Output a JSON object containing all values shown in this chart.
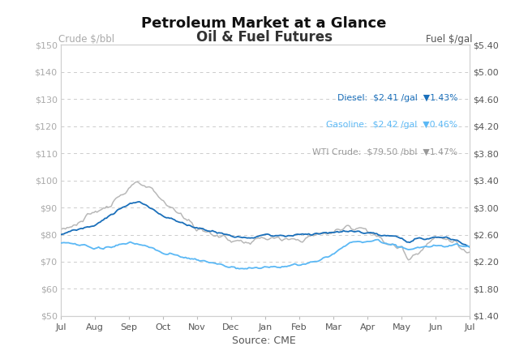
{
  "title": "Petroleum Market at a Glance",
  "subtitle": "Oil & Fuel Futures",
  "source": "Source: CME",
  "left_ylabel": "Crude $/bbl",
  "right_ylabel": "Fuel $/gal",
  "xlabels": [
    "Jul",
    "Aug",
    "Sep",
    "Oct",
    "Nov",
    "Dec",
    "Jan",
    "Feb",
    "Mar",
    "Apr",
    "May",
    "Jun",
    "Jul"
  ],
  "left_ylim": [
    50,
    150
  ],
  "right_ylim": [
    1.4,
    5.4
  ],
  "left_yticks": [
    50,
    60,
    70,
    80,
    90,
    100,
    110,
    120,
    130,
    140,
    150
  ],
  "right_yticks": [
    1.4,
    1.8,
    2.2,
    2.6,
    3.0,
    3.4,
    3.8,
    4.2,
    4.6,
    5.0,
    5.4
  ],
  "left_yticklabels": [
    "$50",
    "$60",
    "$70",
    "$80",
    "$90",
    "$100",
    "$110",
    "$120",
    "$130",
    "$140",
    "$150"
  ],
  "right_yticklabels": [
    "$1.40",
    "$1.80",
    "$2.20",
    "$2.60",
    "$3.00",
    "$3.40",
    "$3.80",
    "$4.20",
    "$4.60",
    "$5.00",
    "$5.40"
  ],
  "diesel_color": "#1a6fba",
  "gasoline_color": "#5bb8f5",
  "crude_color": "#b8b8b8",
  "legend_items": [
    {
      "label": "Diesel:",
      "price": "$2.41 /gal",
      "change": "▼1.43%",
      "color": "#1a6fba"
    },
    {
      "label": "Gasoline:",
      "price": "$2.42 /gal",
      "change": "▼0.46%",
      "color": "#5bb8f5"
    },
    {
      "label": "WTI Crude:",
      "price": "$79.50 /bbl",
      "change": "▼1.47%",
      "color": "#999999"
    }
  ],
  "background_color": "#ffffff",
  "panel_bg": "#ffffff",
  "grid_color": "#cccccc",
  "border_color": "#cccccc",
  "title_fontsize": 13,
  "subtitle_fontsize": 12,
  "axis_label_fontsize": 8.5,
  "tick_fontsize": 8
}
